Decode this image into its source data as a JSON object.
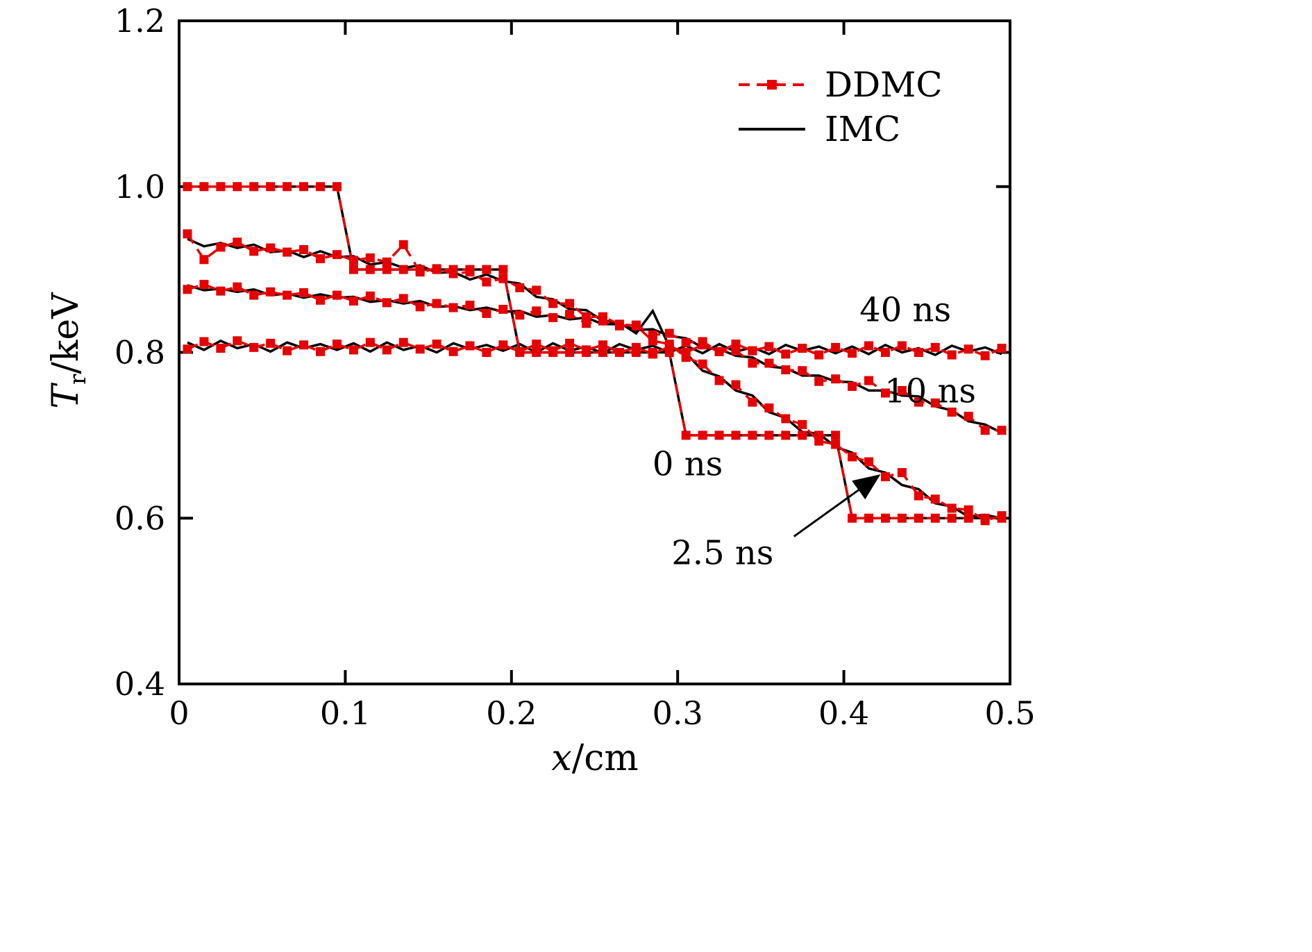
{
  "chart_data": {
    "type": "line",
    "title": "",
    "xlabel": "x/cm",
    "ylabel": "Tr/keV",
    "axis": {
      "xlabel": {
        "var": "x",
        "rest": "/cm"
      },
      "ylabel": {
        "var": "T",
        "sub": "r",
        "rest": "/keV"
      }
    },
    "xlim": [
      0,
      0.5
    ],
    "ylim": [
      0.4,
      1.2
    ],
    "xticks": [
      0,
      0.1,
      0.2,
      0.3,
      0.4,
      0.5
    ],
    "xtick_labels": [
      "0",
      "0.1",
      "0.2",
      "0.3",
      "0.4",
      "0.5"
    ],
    "yticks": [
      0.4,
      0.6,
      0.8,
      1.0,
      1.2
    ],
    "ytick_labels": [
      "0.4",
      "0.6",
      "0.8",
      "1.0",
      "1.2"
    ],
    "grid": false,
    "legend_position": "upper-right-inside",
    "legend": {
      "items": [
        {
          "label": "DDMC",
          "method": "DDMC"
        },
        {
          "label": "IMC",
          "method": "IMC"
        }
      ]
    },
    "styles": {
      "DDMC": {
        "color": "#e60000",
        "dash": "16 10",
        "marker": "square",
        "marker_size": 13
      },
      "IMC": {
        "color": "#000000",
        "dash": null,
        "marker": null,
        "marker_size": 0
      }
    },
    "annotations": [
      {
        "text": "40 ns",
        "x": 0.437,
        "y": 0.848
      },
      {
        "text": "10 ns",
        "x": 0.452,
        "y": 0.75
      },
      {
        "text": "0 ns",
        "x": 0.306,
        "y": 0.662
      },
      {
        "text": "2.5 ns",
        "x": 0.327,
        "y": 0.555,
        "arrow": {
          "x1": 0.37,
          "y1": 0.578,
          "x2": 0.42,
          "y2": 0.65
        }
      }
    ],
    "x": [
      0.005,
      0.015,
      0.025,
      0.035,
      0.045,
      0.055,
      0.065,
      0.075,
      0.085,
      0.095,
      0.105,
      0.115,
      0.125,
      0.135,
      0.145,
      0.155,
      0.165,
      0.175,
      0.185,
      0.195,
      0.205,
      0.215,
      0.225,
      0.235,
      0.245,
      0.255,
      0.265,
      0.275,
      0.285,
      0.295,
      0.305,
      0.315,
      0.325,
      0.335,
      0.345,
      0.355,
      0.365,
      0.375,
      0.385,
      0.395,
      0.405,
      0.415,
      0.425,
      0.435,
      0.445,
      0.455,
      0.465,
      0.475,
      0.485,
      0.495
    ],
    "series": [
      {
        "name": "IMC 0 ns",
        "method": "IMC",
        "time": "0 ns",
        "values": [
          1.0,
          1.0,
          1.0,
          1.0,
          1.0,
          1.0,
          1.0,
          1.0,
          1.0,
          1.0,
          0.9,
          0.9,
          0.9,
          0.9,
          0.9,
          0.9,
          0.9,
          0.9,
          0.9,
          0.9,
          0.8,
          0.8,
          0.8,
          0.8,
          0.8,
          0.8,
          0.8,
          0.8,
          0.8,
          0.8,
          0.7,
          0.7,
          0.7,
          0.7,
          0.7,
          0.7,
          0.7,
          0.7,
          0.7,
          0.7,
          0.6,
          0.6,
          0.6,
          0.6,
          0.6,
          0.6,
          0.6,
          0.6,
          0.6,
          0.6
        ]
      },
      {
        "name": "IMC 2.5 ns",
        "method": "IMC",
        "time": "2.5 ns",
        "values": [
          0.937,
          0.928,
          0.932,
          0.926,
          0.93,
          0.921,
          0.923,
          0.915,
          0.922,
          0.915,
          0.916,
          0.906,
          0.909,
          0.902,
          0.905,
          0.896,
          0.897,
          0.888,
          0.894,
          0.886,
          0.883,
          0.867,
          0.864,
          0.852,
          0.851,
          0.838,
          0.836,
          0.823,
          0.85,
          0.807,
          0.799,
          0.778,
          0.771,
          0.754,
          0.748,
          0.728,
          0.721,
          0.704,
          0.702,
          0.686,
          0.679,
          0.66,
          0.655,
          0.64,
          0.635,
          0.618,
          0.614,
          0.602,
          0.604,
          0.6
        ]
      },
      {
        "name": "IMC 10 ns",
        "method": "IMC",
        "time": "10 ns",
        "values": [
          0.881,
          0.875,
          0.877,
          0.873,
          0.876,
          0.869,
          0.871,
          0.866,
          0.87,
          0.866,
          0.867,
          0.861,
          0.863,
          0.859,
          0.862,
          0.855,
          0.856,
          0.851,
          0.854,
          0.849,
          0.85,
          0.843,
          0.845,
          0.84,
          0.842,
          0.834,
          0.834,
          0.827,
          0.828,
          0.82,
          0.817,
          0.806,
          0.804,
          0.796,
          0.794,
          0.783,
          0.781,
          0.772,
          0.772,
          0.765,
          0.764,
          0.754,
          0.754,
          0.748,
          0.747,
          0.735,
          0.73,
          0.717,
          0.713,
          0.703
        ]
      },
      {
        "name": "IMC 40 ns",
        "method": "IMC",
        "time": "40 ns",
        "values": [
          0.812,
          0.803,
          0.814,
          0.805,
          0.81,
          0.801,
          0.812,
          0.805,
          0.81,
          0.803,
          0.811,
          0.801,
          0.812,
          0.803,
          0.808,
          0.8,
          0.811,
          0.804,
          0.809,
          0.802,
          0.81,
          0.8,
          0.811,
          0.802,
          0.807,
          0.799,
          0.81,
          0.803,
          0.808,
          0.8,
          0.808,
          0.799,
          0.81,
          0.801,
          0.806,
          0.798,
          0.809,
          0.802,
          0.807,
          0.799,
          0.807,
          0.798,
          0.809,
          0.8,
          0.805,
          0.797,
          0.808,
          0.801,
          0.806,
          0.798
        ]
      },
      {
        "name": "DDMC 0 ns",
        "method": "DDMC",
        "time": "0 ns",
        "values": [
          1.0,
          1.0,
          1.0,
          1.0,
          1.0,
          1.0,
          1.0,
          1.0,
          1.0,
          1.0,
          0.9,
          0.9,
          0.9,
          0.9,
          0.9,
          0.9,
          0.9,
          0.9,
          0.9,
          0.9,
          0.8,
          0.8,
          0.8,
          0.8,
          0.8,
          0.8,
          0.8,
          0.8,
          0.8,
          0.8,
          0.7,
          0.7,
          0.7,
          0.7,
          0.7,
          0.7,
          0.7,
          0.7,
          0.7,
          0.7,
          0.6,
          0.6,
          0.6,
          0.6,
          0.6,
          0.6,
          0.6,
          0.6,
          0.6,
          0.6
        ]
      },
      {
        "name": "DDMC 2.5 ns",
        "method": "DDMC",
        "time": "2.5 ns",
        "values": [
          0.943,
          0.912,
          0.927,
          0.933,
          0.922,
          0.926,
          0.921,
          0.924,
          0.913,
          0.918,
          0.911,
          0.914,
          0.909,
          0.93,
          0.897,
          0.901,
          0.895,
          0.897,
          0.885,
          0.889,
          0.878,
          0.875,
          0.859,
          0.859,
          0.843,
          0.843,
          0.834,
          0.832,
          0.814,
          0.81,
          0.794,
          0.786,
          0.766,
          0.761,
          0.74,
          0.733,
          0.72,
          0.713,
          0.693,
          0.689,
          0.674,
          0.668,
          0.65,
          0.655,
          0.627,
          0.623,
          0.612,
          0.61,
          0.597,
          0.603
        ]
      },
      {
        "name": "DDMC 10 ns",
        "method": "DDMC",
        "time": "10 ns",
        "values": [
          0.876,
          0.882,
          0.874,
          0.879,
          0.869,
          0.873,
          0.869,
          0.872,
          0.863,
          0.869,
          0.862,
          0.868,
          0.86,
          0.865,
          0.855,
          0.859,
          0.854,
          0.857,
          0.847,
          0.852,
          0.845,
          0.85,
          0.842,
          0.846,
          0.835,
          0.838,
          0.832,
          0.833,
          0.821,
          0.823,
          0.812,
          0.813,
          0.801,
          0.802,
          0.787,
          0.787,
          0.779,
          0.778,
          0.765,
          0.768,
          0.759,
          0.766,
          0.751,
          0.754,
          0.74,
          0.739,
          0.728,
          0.723,
          0.706,
          0.706
        ]
      },
      {
        "name": "DDMC 40 ns",
        "method": "DDMC",
        "time": "40 ns",
        "values": [
          0.804,
          0.813,
          0.805,
          0.814,
          0.806,
          0.811,
          0.802,
          0.809,
          0.801,
          0.81,
          0.803,
          0.812,
          0.803,
          0.812,
          0.804,
          0.81,
          0.801,
          0.808,
          0.8,
          0.809,
          0.801,
          0.81,
          0.802,
          0.811,
          0.803,
          0.809,
          0.8,
          0.806,
          0.798,
          0.807,
          0.8,
          0.809,
          0.801,
          0.81,
          0.802,
          0.807,
          0.798,
          0.805,
          0.797,
          0.806,
          0.799,
          0.808,
          0.8,
          0.808,
          0.8,
          0.806,
          0.797,
          0.804,
          0.796,
          0.805
        ]
      }
    ]
  }
}
